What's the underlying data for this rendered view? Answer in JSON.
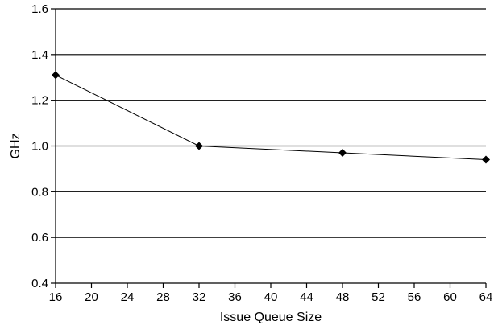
{
  "chart_data": {
    "type": "line",
    "title": "",
    "xlabel": "Issue Queue Size",
    "ylabel": "GHz",
    "xlim": [
      16,
      64
    ],
    "ylim": [
      0.4,
      1.6
    ],
    "x_ticks": [
      16,
      20,
      24,
      28,
      32,
      36,
      40,
      44,
      48,
      52,
      56,
      60,
      64
    ],
    "x_tick_labels": [
      "16",
      "20",
      "24",
      "28",
      "32",
      "36",
      "40",
      "44",
      "48",
      "52",
      "56",
      "60",
      "64"
    ],
    "y_ticks": [
      0.4,
      0.6,
      0.8,
      1.0,
      1.2,
      1.4,
      1.6
    ],
    "y_tick_labels": [
      "0.4",
      "0.6",
      "0.8",
      "1.0",
      "1.2",
      "1.4",
      "1.6"
    ],
    "grid": "horizontal",
    "legend": "none",
    "series": [
      {
        "name": "",
        "x": [
          16,
          32,
          48,
          64
        ],
        "values": [
          1.31,
          1.0,
          0.97,
          0.94
        ],
        "marker": "diamond",
        "color": "#000000"
      }
    ]
  }
}
